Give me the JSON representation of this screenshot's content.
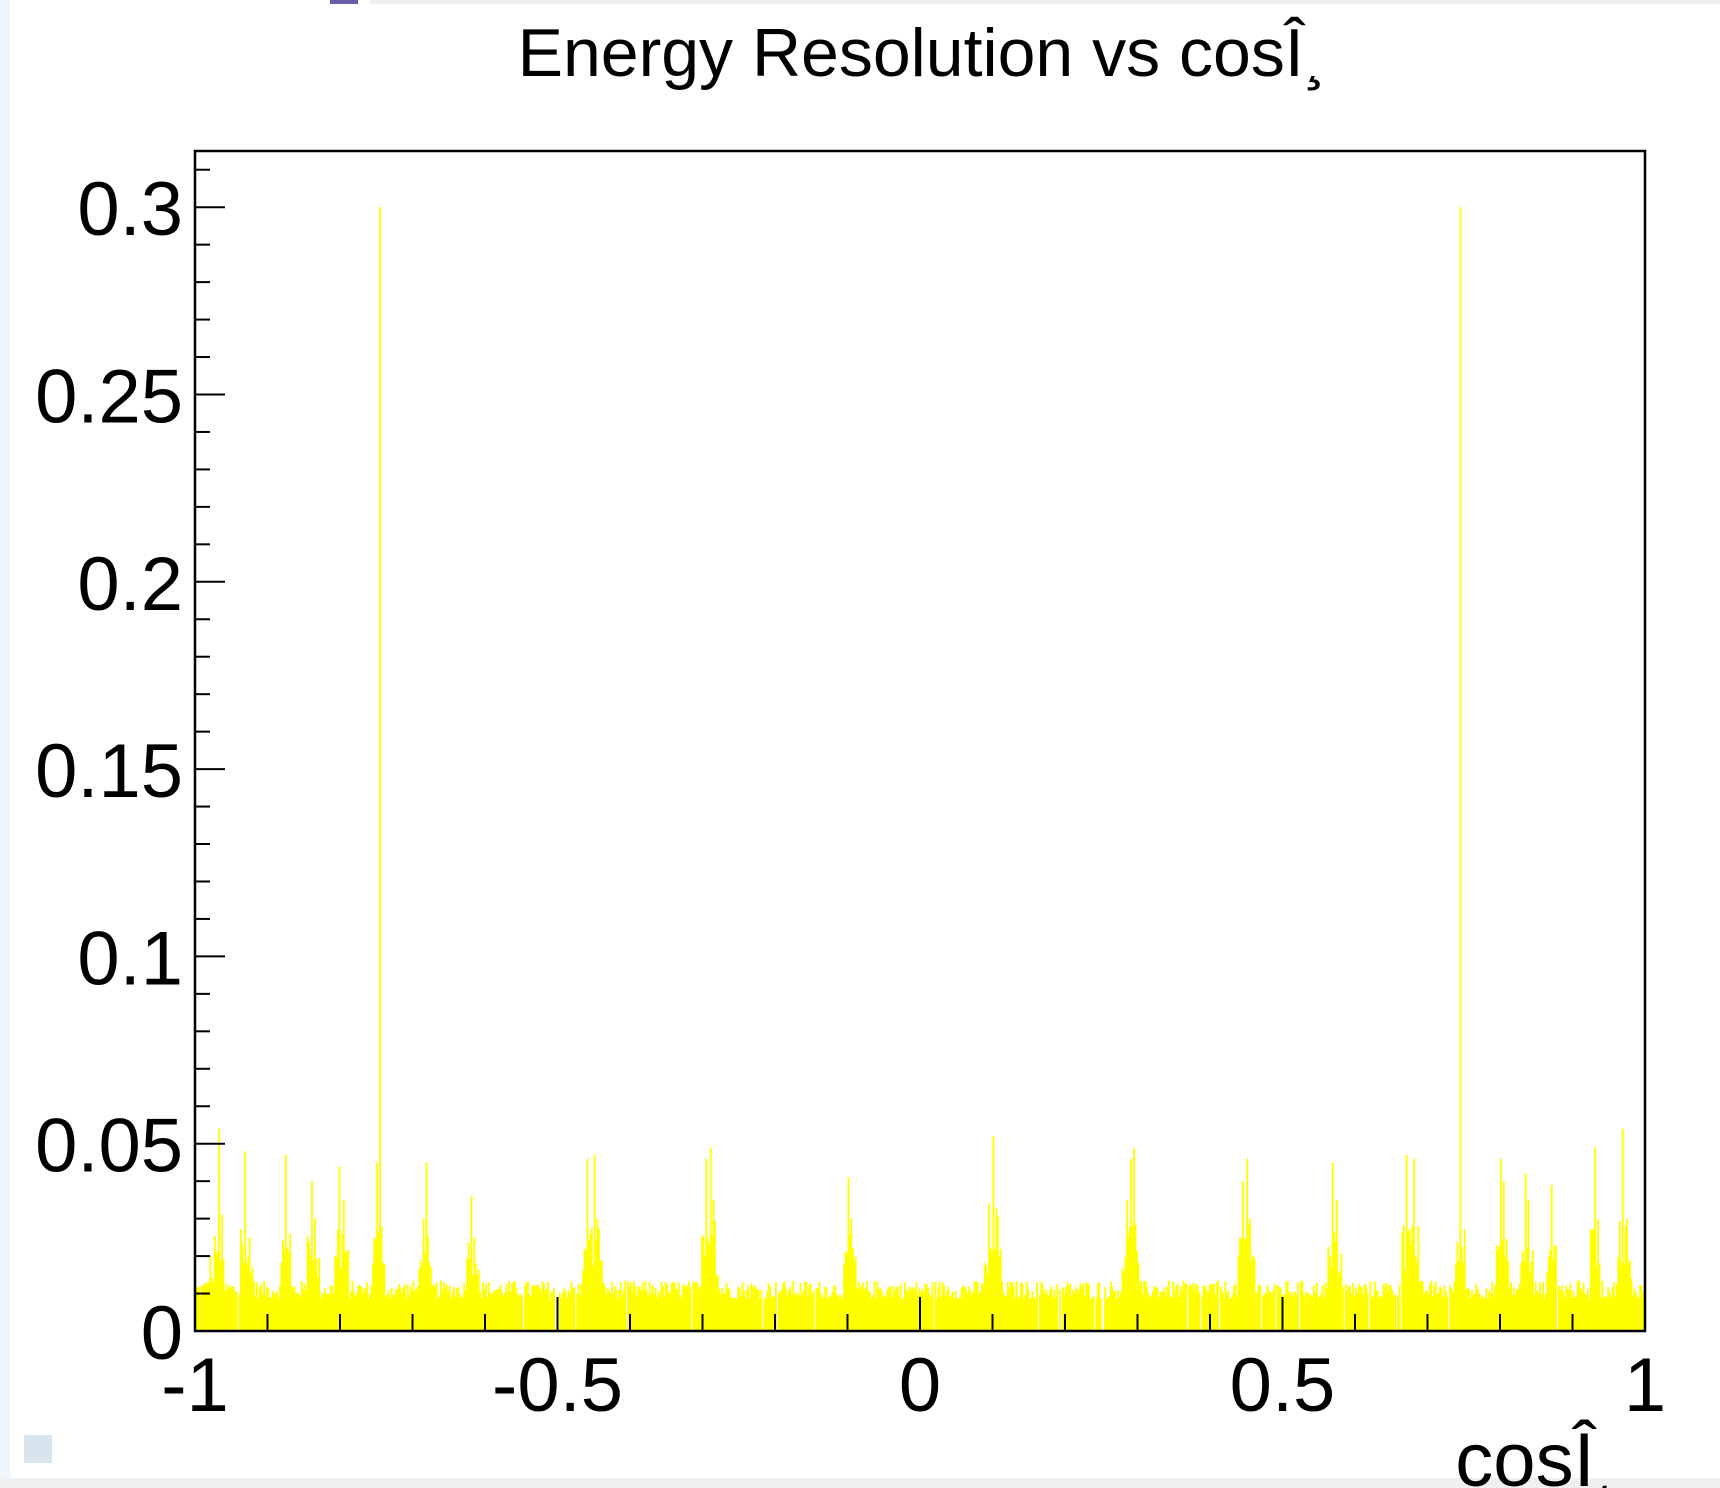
{
  "chart_data": {
    "type": "bar",
    "title": "Energy Resolution vs cosÎ¸",
    "xlabel": "cosÎ¸",
    "ylabel": "",
    "xlim": [
      -1,
      1
    ],
    "ylim": [
      0,
      0.315
    ],
    "x_ticks": [
      "-1",
      "-0.5",
      "0",
      "0.5",
      "1"
    ],
    "y_ticks": [
      "0",
      "0.05",
      "0.1",
      "0.15",
      "0.2",
      "0.25",
      "0.3"
    ],
    "bar_color": "#ffff00",
    "baseline_level": 0.011,
    "peaks": [
      {
        "x": -0.968,
        "y": 0.054
      },
      {
        "x": -0.98,
        "y": 0.02
      },
      {
        "x": -0.93,
        "y": 0.048
      },
      {
        "x": -0.925,
        "y": 0.025
      },
      {
        "x": -0.875,
        "y": 0.047
      },
      {
        "x": -0.84,
        "y": 0.04
      },
      {
        "x": -0.835,
        "y": 0.03
      },
      {
        "x": -0.8,
        "y": 0.044
      },
      {
        "x": -0.795,
        "y": 0.035
      },
      {
        "x": -0.75,
        "y": 0.045
      },
      {
        "x": -0.746,
        "y": 0.3
      },
      {
        "x": -0.745,
        "y": 0.04
      },
      {
        "x": -0.68,
        "y": 0.045
      },
      {
        "x": -0.685,
        "y": 0.03
      },
      {
        "x": -0.62,
        "y": 0.036
      },
      {
        "x": -0.615,
        "y": 0.025
      },
      {
        "x": -0.46,
        "y": 0.046
      },
      {
        "x": -0.45,
        "y": 0.047
      },
      {
        "x": -0.445,
        "y": 0.03
      },
      {
        "x": -0.295,
        "y": 0.046
      },
      {
        "x": -0.29,
        "y": 0.049
      },
      {
        "x": -0.285,
        "y": 0.035
      },
      {
        "x": -0.1,
        "y": 0.041
      },
      {
        "x": -0.095,
        "y": 0.03
      },
      {
        "x": 0.1,
        "y": 0.052
      },
      {
        "x": 0.095,
        "y": 0.034
      },
      {
        "x": 0.105,
        "y": 0.033
      },
      {
        "x": 0.29,
        "y": 0.046
      },
      {
        "x": 0.295,
        "y": 0.049
      },
      {
        "x": 0.285,
        "y": 0.035
      },
      {
        "x": 0.45,
        "y": 0.046
      },
      {
        "x": 0.445,
        "y": 0.04
      },
      {
        "x": 0.455,
        "y": 0.03
      },
      {
        "x": 0.57,
        "y": 0.045
      },
      {
        "x": 0.575,
        "y": 0.035
      },
      {
        "x": 0.67,
        "y": 0.047
      },
      {
        "x": 0.68,
        "y": 0.046
      },
      {
        "x": 0.745,
        "y": 0.045
      },
      {
        "x": 0.744,
        "y": 0.3
      },
      {
        "x": 0.8,
        "y": 0.046
      },
      {
        "x": 0.805,
        "y": 0.04
      },
      {
        "x": 0.835,
        "y": 0.042
      },
      {
        "x": 0.84,
        "y": 0.035
      },
      {
        "x": 0.87,
        "y": 0.039
      },
      {
        "x": 0.93,
        "y": 0.049
      },
      {
        "x": 0.968,
        "y": 0.054
      },
      {
        "x": 0.975,
        "y": 0.03
      }
    ]
  }
}
